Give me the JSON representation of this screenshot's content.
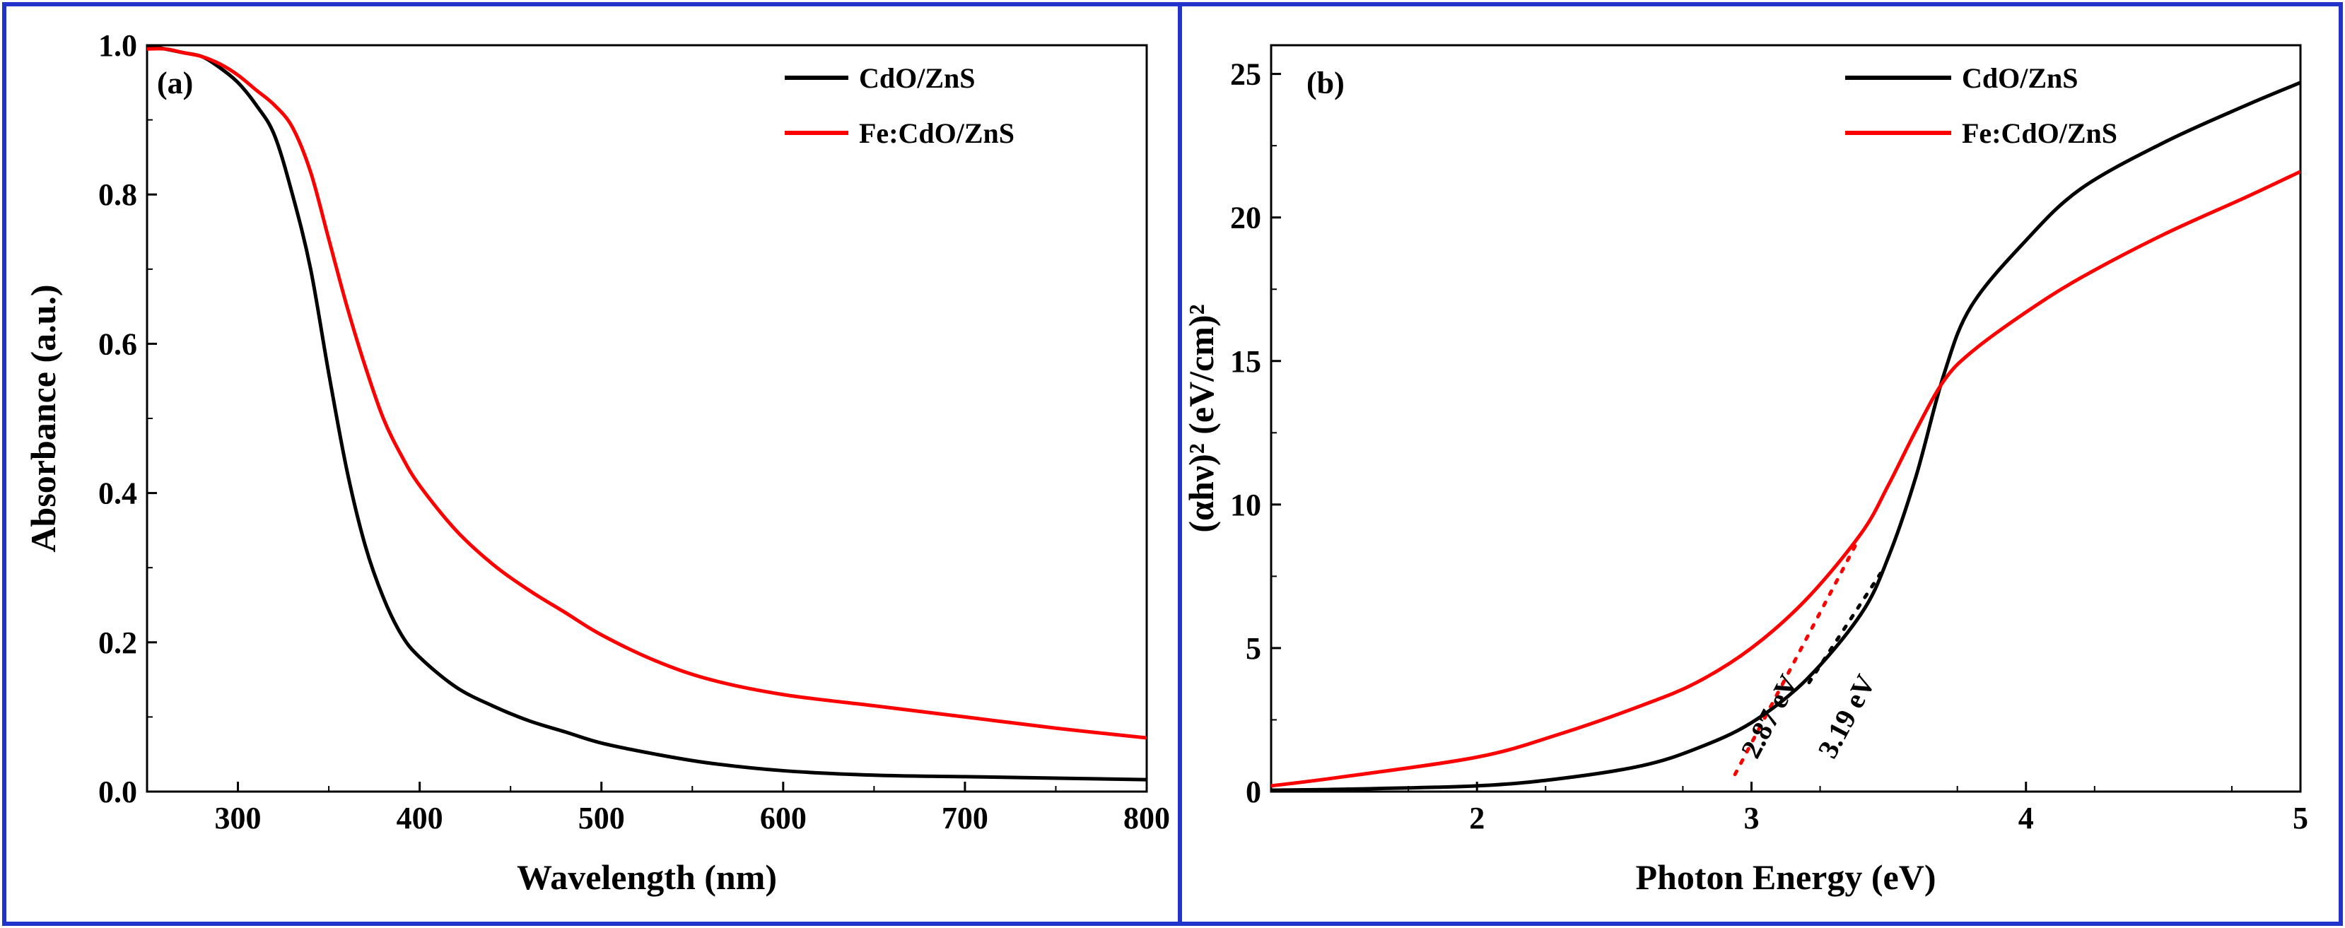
{
  "chart_data": [
    {
      "type": "line",
      "panel_label": "(a)",
      "xlabel": "Wavelength (nm)",
      "ylabel": "Absorbance (a.u.)",
      "xlim": [
        250,
        800
      ],
      "ylim": [
        0.0,
        1.0
      ],
      "x_ticks": [
        "300",
        "400",
        "500",
        "600",
        "700",
        "800"
      ],
      "x_tick_values": [
        300,
        400,
        500,
        600,
        700,
        800
      ],
      "y_ticks": [
        "0.0",
        "0.2",
        "0.4",
        "0.6",
        "0.8",
        "1.0"
      ],
      "y_tick_values": [
        0.0,
        0.2,
        0.4,
        0.6,
        0.8,
        1.0
      ],
      "legend_position": "top-right",
      "series": [
        {
          "name": "CdO/ZnS",
          "color": "#000000",
          "x": [
            250,
            260,
            270,
            280,
            290,
            300,
            310,
            320,
            330,
            340,
            350,
            360,
            370,
            380,
            390,
            400,
            420,
            440,
            460,
            480,
            500,
            530,
            560,
            600,
            650,
            700,
            750,
            800
          ],
          "y": [
            1.0,
            0.995,
            0.99,
            0.985,
            0.97,
            0.95,
            0.92,
            0.88,
            0.8,
            0.7,
            0.56,
            0.43,
            0.33,
            0.26,
            0.21,
            0.18,
            0.14,
            0.115,
            0.095,
            0.08,
            0.065,
            0.05,
            0.038,
            0.028,
            0.022,
            0.02,
            0.018,
            0.016
          ]
        },
        {
          "name": "Fe:CdO/ZnS",
          "color": "#ff0000",
          "x": [
            250,
            260,
            270,
            280,
            290,
            300,
            310,
            320,
            330,
            340,
            350,
            360,
            370,
            380,
            390,
            400,
            420,
            440,
            460,
            480,
            500,
            530,
            560,
            600,
            650,
            700,
            750,
            800
          ],
          "y": [
            0.995,
            0.995,
            0.99,
            0.985,
            0.975,
            0.96,
            0.94,
            0.92,
            0.89,
            0.83,
            0.74,
            0.65,
            0.57,
            0.5,
            0.45,
            0.41,
            0.35,
            0.305,
            0.27,
            0.24,
            0.21,
            0.175,
            0.15,
            0.13,
            0.115,
            0.1,
            0.085,
            0.072
          ]
        }
      ]
    },
    {
      "type": "line",
      "panel_label": "(b)",
      "xlabel": "Photon Energy (eV)",
      "ylabel": "(αhν)² (eV/cm)²",
      "xlim": [
        1.25,
        5.0
      ],
      "ylim": [
        0,
        26
      ],
      "x_ticks": [
        "2",
        "3",
        "4",
        "5"
      ],
      "x_tick_values": [
        2,
        3,
        4,
        5
      ],
      "y_ticks": [
        "0",
        "5",
        "10",
        "15",
        "20",
        "25"
      ],
      "y_tick_values": [
        0,
        5,
        10,
        15,
        20,
        25
      ],
      "legend_position": "top-right",
      "series": [
        {
          "name": "CdO/ZnS",
          "color": "#000000",
          "x": [
            1.25,
            1.5,
            2.0,
            2.3,
            2.6,
            2.8,
            3.0,
            3.2,
            3.4,
            3.5,
            3.6,
            3.7,
            3.8,
            4.0,
            4.2,
            4.5,
            4.8,
            5.0
          ],
          "y": [
            0.05,
            0.08,
            0.2,
            0.45,
            0.9,
            1.5,
            2.4,
            3.9,
            6.2,
            8.2,
            11.0,
            14.5,
            16.9,
            19.2,
            21.0,
            22.6,
            23.9,
            24.7
          ]
        },
        {
          "name": "Fe:CdO/ZnS",
          "color": "#ff0000",
          "x": [
            1.25,
            1.5,
            2.0,
            2.3,
            2.6,
            2.8,
            3.0,
            3.2,
            3.4,
            3.5,
            3.6,
            3.7,
            3.8,
            4.0,
            4.2,
            4.5,
            4.8,
            5.0
          ],
          "y": [
            0.2,
            0.5,
            1.2,
            2.0,
            3.0,
            3.8,
            5.0,
            6.7,
            9.0,
            10.7,
            12.6,
            14.3,
            15.3,
            16.7,
            17.9,
            19.4,
            20.7,
            21.6
          ]
        }
      ],
      "fit_lines": [
        {
          "color": "#ff0000",
          "x": [
            2.94,
            3.38
          ],
          "y": [
            0.6,
            8.6
          ]
        },
        {
          "color": "#000000",
          "x": [
            3.21,
            3.47
          ],
          "y": [
            3.8,
            7.6
          ]
        }
      ],
      "annotations": [
        {
          "text": "2.87 eV",
          "x": 3.02,
          "y": 0.6
        },
        {
          "text": "3.19 eV",
          "x": 3.3,
          "y": 0.6
        }
      ]
    }
  ]
}
